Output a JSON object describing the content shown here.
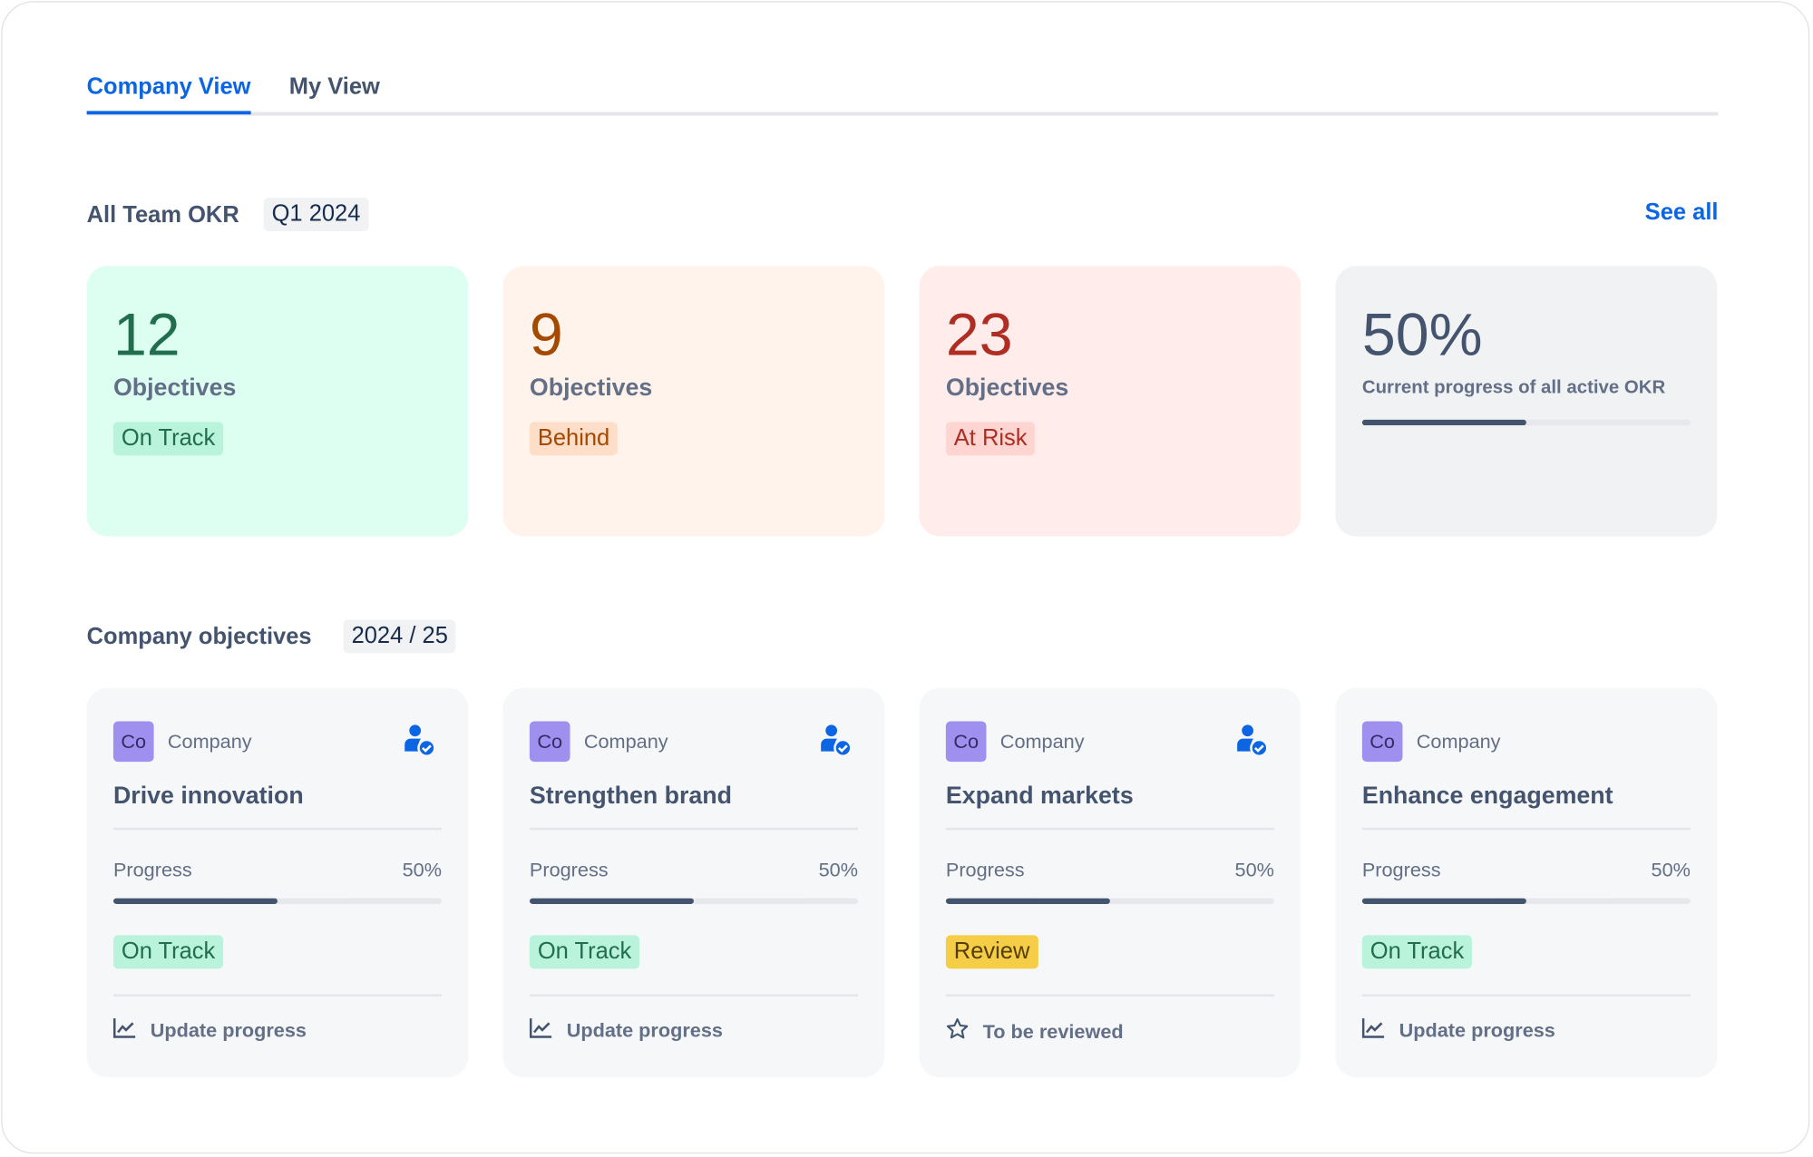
{
  "tabs": [
    {
      "label": "Company View",
      "active": true
    },
    {
      "label": "My View",
      "active": false
    }
  ],
  "okr": {
    "title": "All Team OKR",
    "period": "Q1 2024",
    "see_all": "See all",
    "stats": [
      {
        "value": "12",
        "label": "Objectives",
        "status": "On Track",
        "bg": "#dcfff1",
        "num_color": "#216e4e",
        "badge_bg": "#baf3db",
        "badge_color": "#216e4e"
      },
      {
        "value": "9",
        "label": "Objectives",
        "status": "Behind",
        "bg": "#fff3eb",
        "num_color": "#a54800",
        "badge_bg": "#fedec8",
        "badge_color": "#a54800"
      },
      {
        "value": "23",
        "label": "Objectives",
        "status": "At Risk",
        "bg": "#ffeceb",
        "num_color": "#ae2e24",
        "badge_bg": "#ffd5d2",
        "badge_color": "#ae2e24"
      }
    ],
    "overall": {
      "value": "50%",
      "label": "Current progress of all active OKR",
      "progress": 50
    }
  },
  "objectives": {
    "title": "Company objectives",
    "period": "2024 / 25",
    "progress_label": "Progress",
    "items": [
      {
        "avatar": "Co",
        "org": "Company",
        "title": "Drive innovation",
        "progress": 50,
        "progress_text": "50%",
        "status": "On Track",
        "status_type": "ontrack",
        "action": "Update progress",
        "action_icon": "chart-line-icon",
        "owner_icon": true
      },
      {
        "avatar": "Co",
        "org": "Company",
        "title": "Strengthen brand",
        "progress": 50,
        "progress_text": "50%",
        "status": "On Track",
        "status_type": "ontrack",
        "action": "Update progress",
        "action_icon": "chart-line-icon",
        "owner_icon": true
      },
      {
        "avatar": "Co",
        "org": "Company",
        "title": "Expand markets",
        "progress": 50,
        "progress_text": "50%",
        "status": "Review",
        "status_type": "review",
        "action": "To be reviewed",
        "action_icon": "star-icon",
        "owner_icon": true
      },
      {
        "avatar": "Co",
        "org": "Company",
        "title": "Enhance engagement",
        "progress": 50,
        "progress_text": "50%",
        "status": "On Track",
        "status_type": "ontrack",
        "action": "Update progress",
        "action_icon": "chart-line-icon",
        "owner_icon": false
      }
    ]
  },
  "colors": {
    "accent": "#0c66e4",
    "ontrack_bg": "#baf3db",
    "ontrack_fg": "#216e4e",
    "review_bg": "#f5cd47",
    "review_fg": "#533f04"
  }
}
